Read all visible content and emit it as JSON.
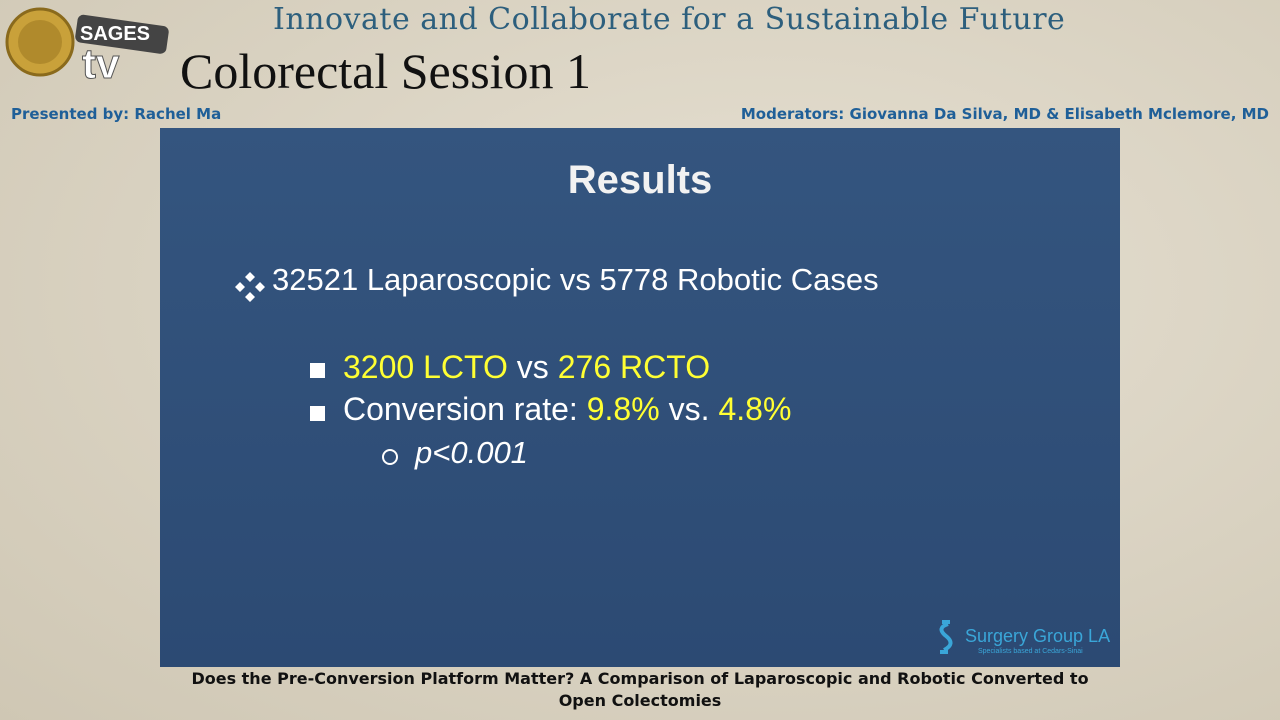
{
  "header": {
    "tagline": "Innovate and Collaborate for a Sustainable Future",
    "session": "Colorectal Session 1",
    "presenter": "Presented by: Rachel Ma",
    "moderators": "Moderators: Giovanna Da Silva, MD & Elisabeth Mclemore, MD",
    "logo": {
      "brand": "SAGES",
      "channel": "tv"
    }
  },
  "slide": {
    "title": "Results",
    "bullets": [
      {
        "runs": [
          {
            "text": "32521 Laparoscopic vs 5778 Robotic Cases",
            "color": "#ffffff"
          }
        ]
      },
      {
        "runs": [
          {
            "text": "3200 LCTO",
            "color": "#ffff33"
          },
          {
            "text": "vs",
            "color": "#ffffff"
          },
          {
            "text": "276 RCTO",
            "color": "#ffff33"
          }
        ]
      },
      {
        "runs": [
          {
            "text": "Conversion rate:",
            "color": "#ffffff"
          },
          {
            "text": "9.8%",
            "color": "#ffff33"
          },
          {
            "text": "vs.",
            "color": "#ffffff"
          },
          {
            "text": "4.8%",
            "color": "#ffff33"
          }
        ]
      },
      {
        "runs": [
          {
            "text": "p<0.001",
            "color": "#ffffff"
          }
        ]
      }
    ],
    "sponsor": {
      "name": "Surgery Group LA",
      "note": "Specialists based at Cedars-Sinai"
    }
  },
  "caption": "Does the Pre-Conversion Platform Matter? A Comparison of Laparoscopic and Robotic Converted to Open Colectomies"
}
